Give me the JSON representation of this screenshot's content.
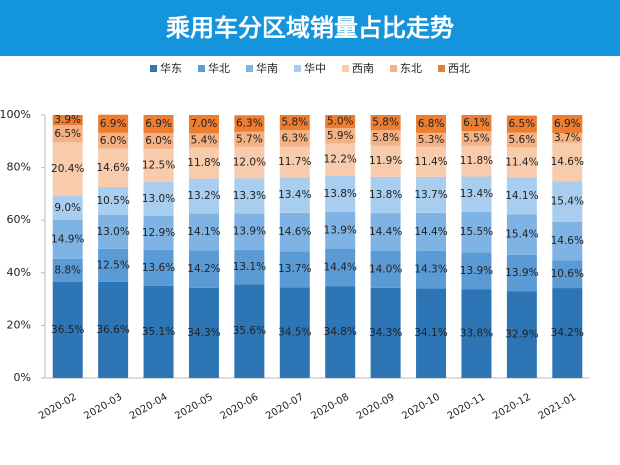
{
  "chart_data": {
    "type": "stacked_bar",
    "title": "乘用车分区域销量占比走势",
    "categories": [
      "2020-02",
      "2020-03",
      "2020-04",
      "2020-05",
      "2020-06",
      "2020-07",
      "2020-08",
      "2020-09",
      "2020-10",
      "2020-11",
      "2020-12",
      "2021-01"
    ],
    "series": [
      {
        "name": "华东",
        "color": "#2e75b6",
        "values": [
          36.5,
          36.6,
          35.1,
          34.3,
          35.6,
          34.5,
          34.8,
          34.3,
          34.1,
          33.8,
          32.9,
          34.2
        ],
        "value_labels": [
          "36.5%",
          "36.6%",
          "35.1%",
          "34.3%",
          "35.6%",
          "34.5%",
          "34.8%",
          "34.3%",
          "34.1%",
          "33.8%",
          "32.9%",
          "34.2%"
        ]
      },
      {
        "name": "华北",
        "color": "#5b9bd5",
        "values": [
          8.8,
          12.5,
          13.6,
          14.2,
          13.1,
          13.7,
          14.4,
          14.0,
          14.3,
          13.9,
          13.9,
          10.6
        ],
        "value_labels": [
          "8.8%",
          "12.5%",
          "13.6%",
          "14.2%",
          "13.1%",
          "13.7%",
          "14.4%",
          "14.0%",
          "14.3%",
          "13.9%",
          "13.9%",
          "10.6%"
        ]
      },
      {
        "name": "华南",
        "color": "#7fb3e3",
        "values": [
          14.9,
          13.0,
          12.9,
          14.1,
          13.9,
          14.6,
          13.9,
          14.4,
          14.4,
          15.5,
          15.4,
          14.6
        ],
        "value_labels": [
          "14.9%",
          "13.0%",
          "12.9%",
          "14.1%",
          "13.9%",
          "14.6%",
          "13.9%",
          "14.4%",
          "14.4%",
          "15.5%",
          "15.4%",
          "14.6%"
        ]
      },
      {
        "name": "华中",
        "color": "#a9cdee",
        "values": [
          9.0,
          10.5,
          13.0,
          13.2,
          13.3,
          13.4,
          13.8,
          13.8,
          13.7,
          13.4,
          14.1,
          15.4
        ],
        "value_labels": [
          "9.0%",
          "10.5%",
          "13.0%",
          "13.2%",
          "13.3%",
          "13.4%",
          "13.8%",
          "13.8%",
          "13.7%",
          "13.4%",
          "14.1%",
          "15.4%"
        ]
      },
      {
        "name": "西南",
        "color": "#f8cbad",
        "values": [
          20.4,
          14.6,
          12.5,
          11.8,
          12.0,
          11.7,
          12.2,
          11.9,
          11.4,
          11.8,
          11.4,
          14.6
        ],
        "value_labels": [
          "20.4%",
          "14.6%",
          "12.5%",
          "11.8%",
          "12.0%",
          "11.7%",
          "12.2%",
          "11.9%",
          "11.4%",
          "11.8%",
          "11.4%",
          "14.6%"
        ]
      },
      {
        "name": "东北",
        "color": "#f4b183",
        "values": [
          6.5,
          6.0,
          6.0,
          5.4,
          5.7,
          6.3,
          5.9,
          5.8,
          5.3,
          5.5,
          5.6,
          3.7
        ],
        "value_labels": [
          "6.5%",
          "6.0%",
          "6.0%",
          "5.4%",
          "5.7%",
          "6.3%",
          "5.9%",
          "5.8%",
          "5.3%",
          "5.5%",
          "5.6%",
          "3.7%"
        ]
      },
      {
        "name": "西北",
        "color": "#ed7d31",
        "values": [
          3.9,
          6.9,
          6.9,
          7.0,
          6.3,
          5.8,
          5.0,
          5.8,
          6.8,
          6.1,
          6.5,
          6.9
        ],
        "value_labels": [
          "3.9%",
          "6.9%",
          "6.9%",
          "7.0%",
          "6.3%",
          "5.8%",
          "5.0%",
          "5.8%",
          "6.8%",
          "6.1%",
          "6.5%",
          "6.9%"
        ]
      }
    ],
    "ylim": [
      0,
      100
    ],
    "yticks": [
      {
        "value": 0,
        "label": "0%"
      },
      {
        "value": 20,
        "label": "20%"
      },
      {
        "value": 40,
        "label": "40%"
      },
      {
        "value": 60,
        "label": "60%"
      },
      {
        "value": 80,
        "label": "80%"
      },
      {
        "value": 100,
        "label": "100%"
      }
    ]
  }
}
